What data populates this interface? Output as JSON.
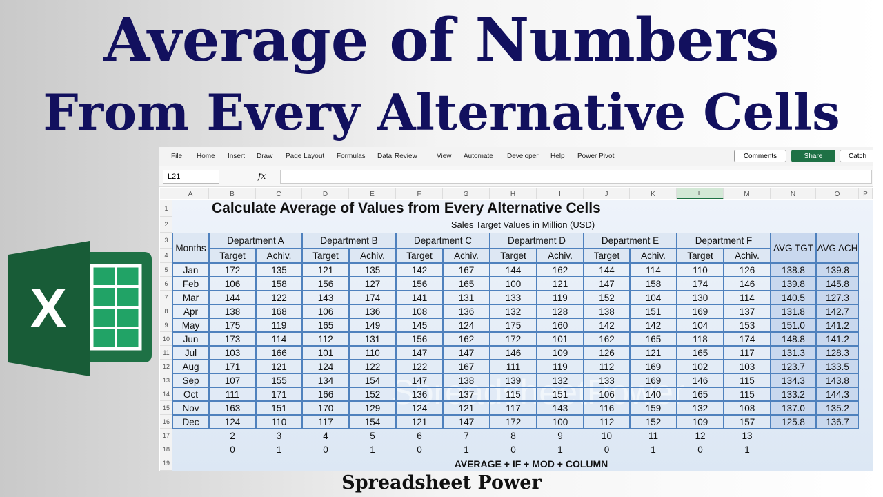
{
  "headline": {
    "line1": "Average of Numbers",
    "line2": "From Every Alternative Cells"
  },
  "logo": {
    "letter": "X"
  },
  "ribbon": {
    "tabs": [
      "File",
      "Home",
      "Insert",
      "Draw",
      "Page Layout",
      "Formulas",
      "Data",
      "Review",
      "View",
      "Automate",
      "Developer",
      "Help",
      "Power Pivot"
    ],
    "buttons": {
      "comments": "Comments",
      "share": "Share",
      "catch": "Catch"
    }
  },
  "formula_bar": {
    "name_box": "L21",
    "fx": "fx"
  },
  "sheet": {
    "column_letters": [
      "A",
      "B",
      "C",
      "D",
      "E",
      "F",
      "G",
      "H",
      "I",
      "J",
      "K",
      "L",
      "M",
      "N",
      "O",
      "P"
    ],
    "row_numbers": [
      1,
      2,
      3,
      4,
      5,
      6,
      7,
      8,
      9,
      10,
      11,
      12,
      13,
      14,
      15,
      16,
      17,
      18,
      19
    ],
    "watermark": "SpreadsheetPower"
  },
  "table": {
    "title": "Calculate Average of Values from Every Alternative Cells",
    "subtitle": "Sales Target Values in Million (USD)",
    "header": {
      "months": "Months",
      "departments": [
        "Department A",
        "Department B",
        "Department C",
        "Department D",
        "Department E",
        "Department F"
      ],
      "sub_headers": [
        "Target",
        "Achiv."
      ],
      "avg_tgt": "AVG TGT",
      "avg_ach": "AVG ACH"
    },
    "rows": [
      {
        "month": "Jan",
        "values": [
          172,
          135,
          121,
          135,
          142,
          167,
          144,
          162,
          144,
          114,
          110,
          126
        ],
        "avg_tgt": "138.8",
        "avg_ach": "139.8"
      },
      {
        "month": "Feb",
        "values": [
          106,
          158,
          156,
          127,
          156,
          165,
          100,
          121,
          147,
          158,
          174,
          146
        ],
        "avg_tgt": "139.8",
        "avg_ach": "145.8"
      },
      {
        "month": "Mar",
        "values": [
          144,
          122,
          143,
          174,
          141,
          131,
          133,
          119,
          152,
          104,
          130,
          114
        ],
        "avg_tgt": "140.5",
        "avg_ach": "127.3"
      },
      {
        "month": "Apr",
        "values": [
          138,
          168,
          106,
          136,
          108,
          136,
          132,
          128,
          138,
          151,
          169,
          137
        ],
        "avg_tgt": "131.8",
        "avg_ach": "142.7"
      },
      {
        "month": "May",
        "values": [
          175,
          119,
          165,
          149,
          145,
          124,
          175,
          160,
          142,
          142,
          104,
          153
        ],
        "avg_tgt": "151.0",
        "avg_ach": "141.2"
      },
      {
        "month": "Jun",
        "values": [
          173,
          114,
          112,
          131,
          156,
          162,
          172,
          101,
          162,
          165,
          118,
          174
        ],
        "avg_tgt": "148.8",
        "avg_ach": "141.2"
      },
      {
        "month": "Jul",
        "values": [
          103,
          166,
          101,
          110,
          147,
          147,
          146,
          109,
          126,
          121,
          165,
          117
        ],
        "avg_tgt": "131.3",
        "avg_ach": "128.3"
      },
      {
        "month": "Aug",
        "values": [
          171,
          121,
          124,
          122,
          122,
          167,
          111,
          119,
          112,
          169,
          102,
          103
        ],
        "avg_tgt": "123.7",
        "avg_ach": "133.5"
      },
      {
        "month": "Sep",
        "values": [
          107,
          155,
          134,
          154,
          147,
          138,
          139,
          132,
          133,
          169,
          146,
          115
        ],
        "avg_tgt": "134.3",
        "avg_ach": "143.8"
      },
      {
        "month": "Oct",
        "values": [
          111,
          171,
          166,
          152,
          136,
          137,
          115,
          151,
          106,
          140,
          165,
          115
        ],
        "avg_tgt": "133.2",
        "avg_ach": "144.3"
      },
      {
        "month": "Nov",
        "values": [
          163,
          151,
          170,
          129,
          124,
          121,
          117,
          143,
          116,
          159,
          132,
          108
        ],
        "avg_tgt": "137.0",
        "avg_ach": "135.2"
      },
      {
        "month": "Dec",
        "values": [
          124,
          110,
          117,
          154,
          121,
          147,
          172,
          100,
          112,
          152,
          109,
          157
        ],
        "avg_tgt": "125.8",
        "avg_ach": "136.7"
      }
    ],
    "column_numbers": [
      2,
      3,
      4,
      5,
      6,
      7,
      8,
      9,
      10,
      11,
      12,
      13
    ],
    "mod_flags": [
      0,
      1,
      0,
      1,
      0,
      1,
      0,
      1,
      0,
      1,
      0,
      1
    ],
    "formula_note": "AVERAGE + IF + MOD + COLUMN"
  },
  "footer": "Spreadsheet Power"
}
